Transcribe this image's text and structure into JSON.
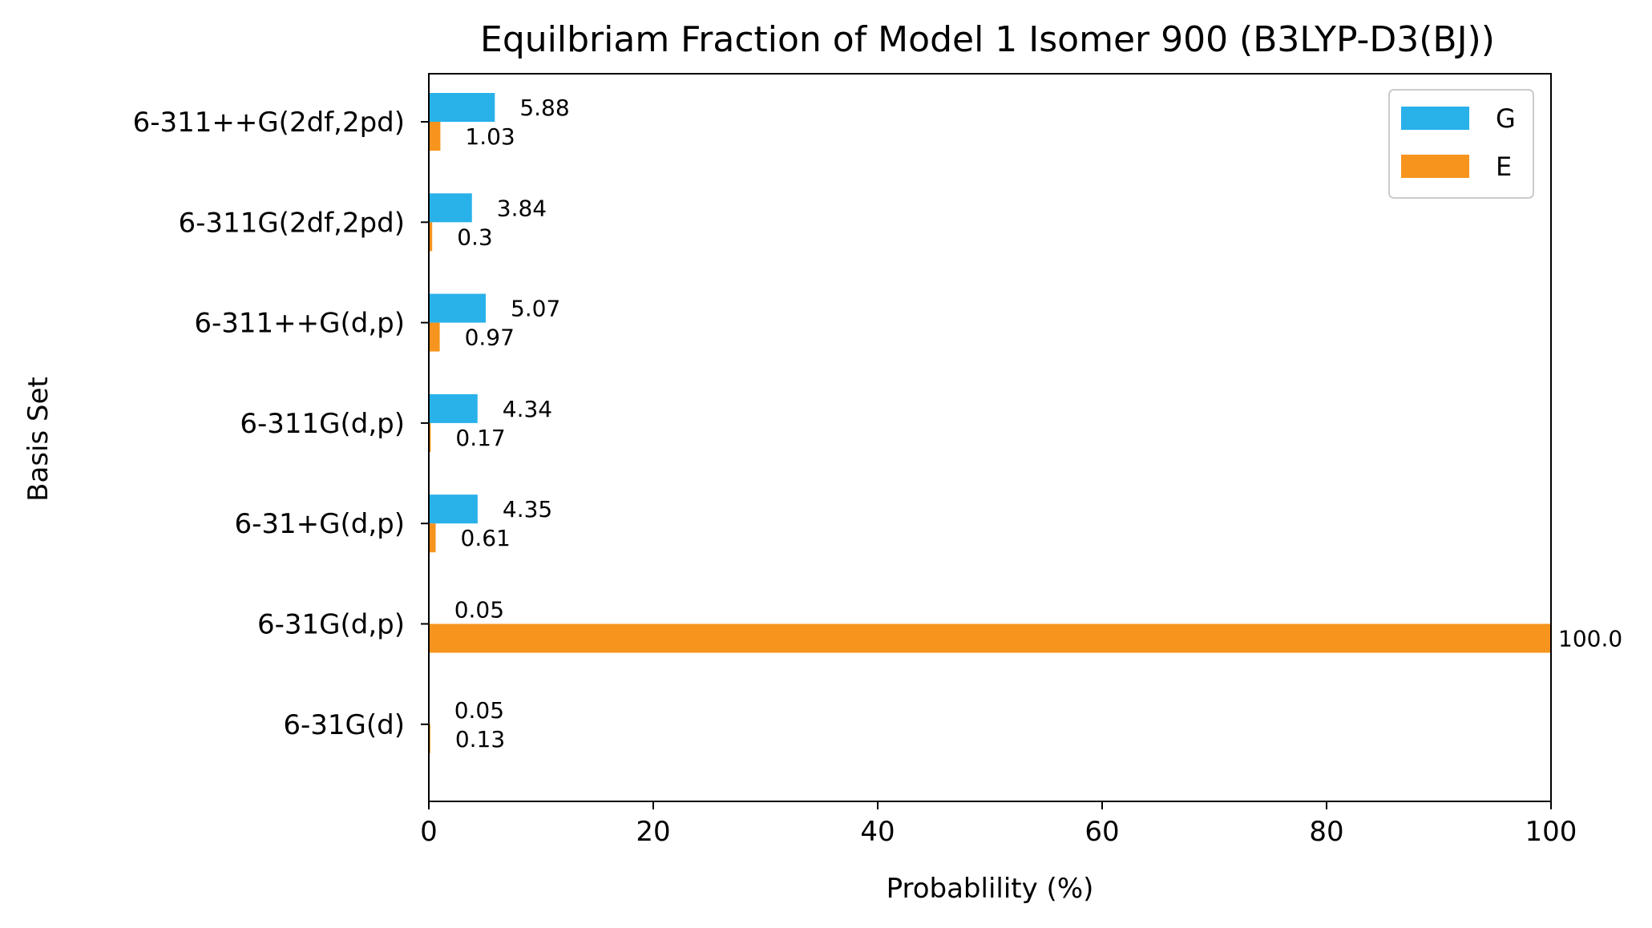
{
  "chart_data": {
    "type": "bar",
    "orientation": "horizontal",
    "title": "Equilbriam Fraction of Model 1 Isomer 900 (B3LYP-D3(BJ))",
    "xlabel": "Probablility (%)",
    "ylabel": "Basis Set",
    "xlim": [
      0,
      100
    ],
    "xticks": [
      "0",
      "20",
      "40",
      "60",
      "80",
      "100"
    ],
    "categories": [
      "6-311++G(2df,2pd)",
      "6-311G(2df,2pd)",
      "6-311++G(d,p)",
      "6-311G(d,p)",
      "6-31+G(d,p)",
      "6-31G(d,p)",
      "6-31G(d)"
    ],
    "series": [
      {
        "name": "G",
        "color": "#29b1ea",
        "values": [
          5.88,
          3.84,
          5.07,
          4.34,
          4.35,
          0.05,
          0.05
        ],
        "labels": [
          "5.88",
          "3.84",
          "5.07",
          "4.34",
          "4.35",
          "0.05",
          "0.05"
        ]
      },
      {
        "name": "E",
        "color": "#f7941d",
        "values": [
          1.03,
          0.3,
          0.97,
          0.17,
          0.61,
          100.0,
          0.13
        ],
        "labels": [
          "1.03",
          "0.3",
          "0.97",
          "0.17",
          "0.61",
          "100.0",
          "0.13"
        ]
      }
    ],
    "legend": {
      "position": "top-right"
    },
    "grid": false
  }
}
